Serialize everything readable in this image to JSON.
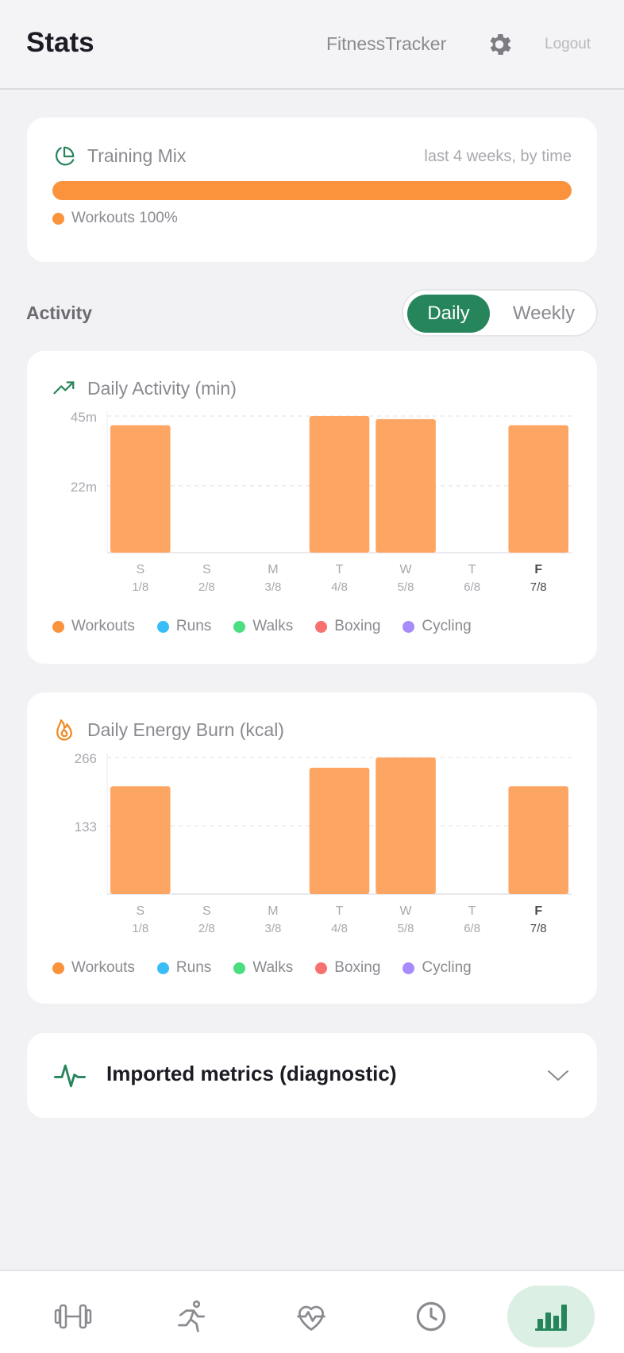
{
  "header": {
    "title": "Stats",
    "app_name": "FitnessTracker",
    "logout_label": "Logout"
  },
  "training_mix": {
    "title": "Training Mix",
    "subtitle": "last 4 weeks, by time",
    "bar_fill_percent": 100,
    "legend": [
      {
        "label": "Workouts 100%",
        "color": "#fb923c"
      }
    ]
  },
  "activity": {
    "section_label": "Activity",
    "toggle": {
      "active": "Daily",
      "inactive": "Weekly"
    }
  },
  "legend_entries": [
    {
      "label": "Workouts",
      "color": "#fb923c"
    },
    {
      "label": "Runs",
      "color": "#38bdf8"
    },
    {
      "label": "Walks",
      "color": "#4ade80"
    },
    {
      "label": "Boxing",
      "color": "#f87171"
    },
    {
      "label": "Cycling",
      "color": "#a78bfa"
    }
  ],
  "chart_data": [
    {
      "type": "bar",
      "title": "Daily Activity (min)",
      "categories": [
        "S",
        "S",
        "M",
        "T",
        "W",
        "T",
        "F"
      ],
      "dates": [
        "1/8",
        "2/8",
        "3/8",
        "4/8",
        "5/8",
        "6/8",
        "7/8"
      ],
      "highlight_index": 6,
      "series": [
        {
          "name": "Workouts",
          "values": [
            42,
            0,
            0,
            45,
            44,
            0,
            42
          ]
        }
      ],
      "yticks": [
        "45m",
        "22m"
      ],
      "ytick_values": [
        45,
        22
      ],
      "ylim": [
        0,
        45
      ],
      "grid": true
    },
    {
      "type": "bar",
      "title": "Daily Energy Burn (kcal)",
      "categories": [
        "S",
        "S",
        "M",
        "T",
        "W",
        "T",
        "F"
      ],
      "dates": [
        "1/8",
        "2/8",
        "3/8",
        "4/8",
        "5/8",
        "6/8",
        "7/8"
      ],
      "highlight_index": 6,
      "series": [
        {
          "name": "Workouts",
          "values": [
            210,
            0,
            0,
            246,
            266,
            0,
            210
          ]
        }
      ],
      "yticks": [
        "266",
        "133"
      ],
      "ytick_values": [
        266,
        133
      ],
      "ylim": [
        0,
        266
      ],
      "grid": true
    }
  ],
  "imported": {
    "title": "Imported metrics (diagnostic)"
  },
  "colors": {
    "accent": "#26855a",
    "bar": "#fda562",
    "muted_text": "#8a8a90"
  },
  "bottom_nav": [
    "dumbbell-icon",
    "run-icon",
    "heart-pulse-icon",
    "clock-icon",
    "bar-chart-icon"
  ]
}
